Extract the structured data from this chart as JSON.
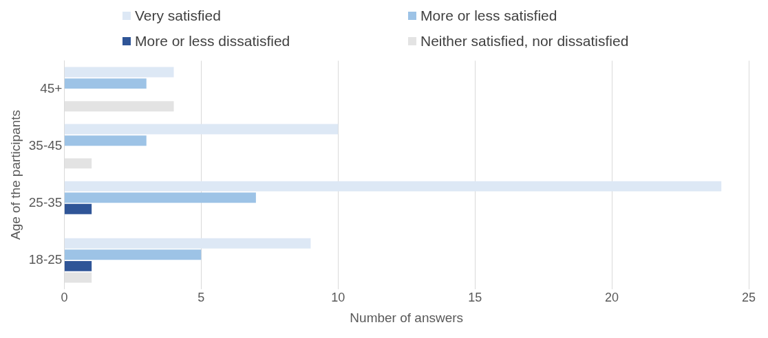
{
  "chart_data": {
    "type": "bar",
    "orientation": "horizontal",
    "xlabel": "Number of answers",
    "ylabel": "Age of the participants",
    "categories": [
      "45+",
      "35-45",
      "25-35",
      "18-25"
    ],
    "series": [
      {
        "name": "Very satisfied",
        "color": "#dde8f5",
        "values": [
          4,
          10,
          24,
          9
        ]
      },
      {
        "name": "More or less satisfied",
        "color": "#9dc3e6",
        "values": [
          3,
          3,
          7,
          5
        ]
      },
      {
        "name": "More or less dissatisfied",
        "color": "#2f5597",
        "values": [
          0,
          0,
          1,
          1
        ]
      },
      {
        "name": "Neither satisfied, nor dissatisfied",
        "color": "#e3e3e3",
        "values": [
          4,
          1,
          0,
          1
        ]
      }
    ],
    "xlim": [
      0,
      25
    ],
    "xticks": [
      0,
      5,
      10,
      15,
      20,
      25
    ],
    "grid": "x",
    "legend": "top"
  }
}
